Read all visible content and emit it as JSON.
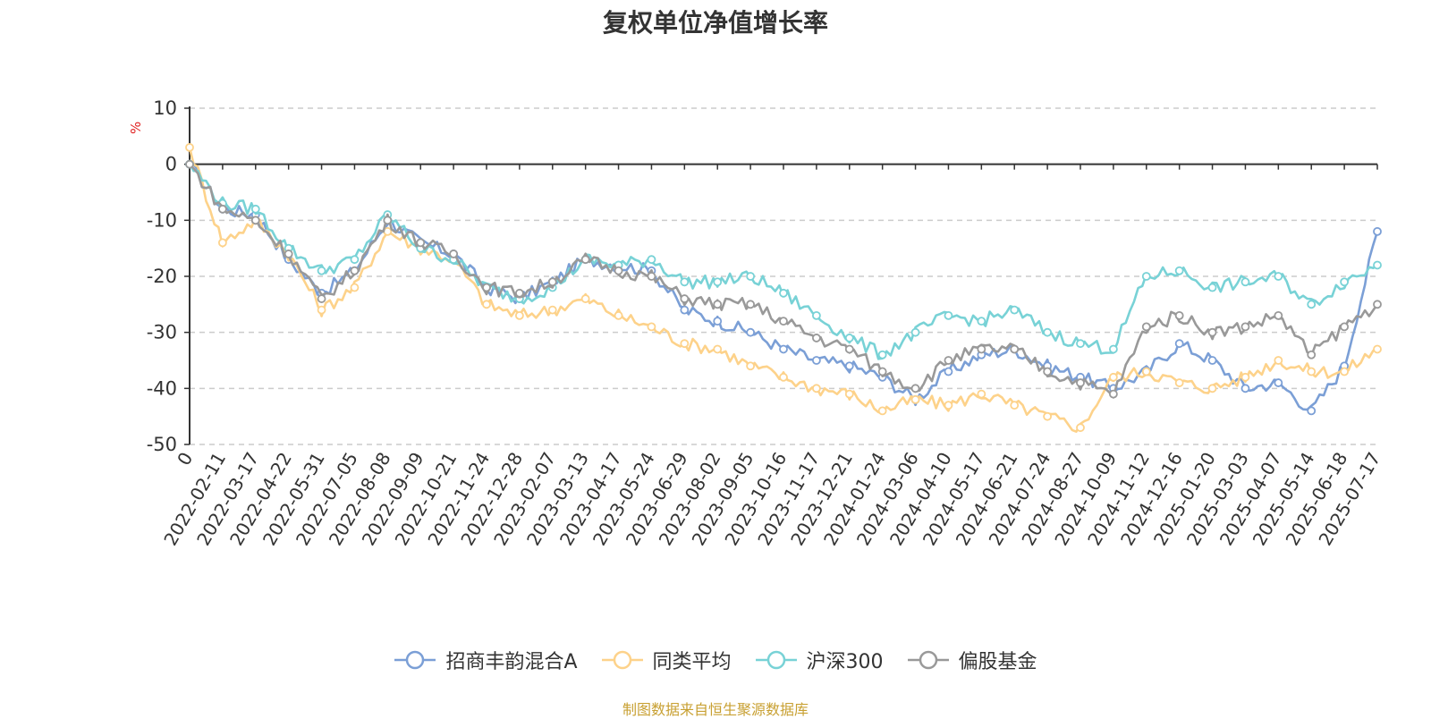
{
  "chart_data": {
    "type": "line",
    "title": "复权单位净值增长率",
    "ylabel": "%",
    "ylim": [
      -50,
      10
    ],
    "yticks": [
      10,
      0,
      -10,
      -20,
      -30,
      -40,
      -50
    ],
    "grid": true,
    "legend_position": "bottom",
    "x_tick_labels": [
      "0",
      "2022-02-11",
      "2022-03-17",
      "2022-04-22",
      "2022-05-31",
      "2022-07-05",
      "2022-08-08",
      "2022-09-09",
      "2022-10-21",
      "2022-11-24",
      "2022-12-28",
      "2023-02-07",
      "2023-03-13",
      "2023-04-17",
      "2023-05-24",
      "2023-06-29",
      "2023-08-02",
      "2023-09-05",
      "2023-10-16",
      "2023-11-17",
      "2023-12-21",
      "2024-01-24",
      "2024-03-06",
      "2024-04-10",
      "2024-05-17",
      "2024-06-21",
      "2024-07-24",
      "2024-08-27",
      "2024-10-09",
      "2024-11-12",
      "2024-12-16",
      "2025-01-20",
      "2025-03-03",
      "2025-04-07",
      "2025-05-14",
      "2025-06-18",
      "2025-07-17"
    ],
    "series": [
      {
        "name": "招商丰韵混合A",
        "color": "#7b9fd6",
        "values": [
          0,
          -8,
          -9,
          -17,
          -23,
          -19,
          -10,
          -14,
          -16,
          -22,
          -24,
          -21,
          -17,
          -18,
          -19,
          -26,
          -28,
          -30,
          -33,
          -35,
          -36,
          -38,
          -42,
          -37,
          -34,
          -33,
          -36,
          -38,
          -40,
          -37,
          -32,
          -35,
          -40,
          -39,
          -44,
          -36,
          -12
        ]
      },
      {
        "name": "同类平均",
        "color": "#fdd28a",
        "values": [
          3,
          -14,
          -10,
          -16,
          -26,
          -22,
          -12,
          -15,
          -17,
          -25,
          -27,
          -26,
          -24,
          -27,
          -29,
          -32,
          -33,
          -36,
          -38,
          -40,
          -41,
          -44,
          -42,
          -43,
          -41,
          -43,
          -45,
          -47,
          -38,
          -37,
          -39,
          -40,
          -38,
          -35,
          -37,
          -37,
          -33
        ]
      },
      {
        "name": "沪深300",
        "color": "#78d2d6",
        "values": [
          0,
          -7,
          -8,
          -15,
          -19,
          -17,
          -9,
          -15,
          -17,
          -22,
          -24,
          -22,
          -17,
          -18,
          -17,
          -21,
          -21,
          -20,
          -23,
          -27,
          -31,
          -34,
          -30,
          -27,
          -28,
          -26,
          -30,
          -32,
          -33,
          -20,
          -19,
          -22,
          -21,
          -20,
          -25,
          -21,
          -18
        ]
      },
      {
        "name": "偏股基金",
        "color": "#999999",
        "values": [
          0,
          -8,
          -10,
          -16,
          -24,
          -19,
          -10,
          -14,
          -16,
          -22,
          -23,
          -21,
          -17,
          -19,
          -20,
          -24,
          -25,
          -25,
          -28,
          -31,
          -33,
          -37,
          -40,
          -35,
          -33,
          -33,
          -37,
          -39,
          -41,
          -29,
          -27,
          -30,
          -29,
          -27,
          -34,
          -29,
          -25
        ]
      }
    ],
    "marker_positions": [
      0,
      1,
      2,
      3,
      4,
      5,
      6,
      7,
      8,
      9,
      10,
      11,
      12,
      13,
      14,
      15,
      16,
      17,
      18,
      19,
      20,
      21,
      22,
      23,
      24,
      25,
      26,
      27,
      28,
      29,
      30,
      31,
      32,
      33,
      34,
      35,
      36
    ],
    "source_note": "制图数据来自恒生聚源数据库"
  }
}
